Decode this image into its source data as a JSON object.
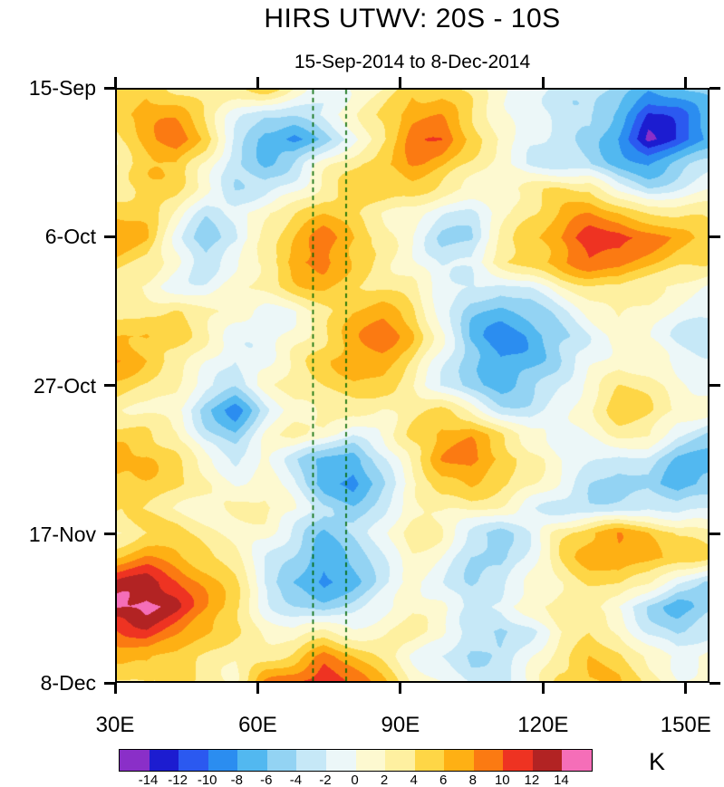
{
  "title": "HIRS UTWV: 20S - 10S",
  "subtitle": "15-Sep-2014 to 8-Dec-2014",
  "axes": {
    "x_range": [
      30,
      155
    ],
    "y_range_days": [
      0,
      84
    ],
    "x_ticks": [
      {
        "lon": 30,
        "label": "30E"
      },
      {
        "lon": 60,
        "label": "60E"
      },
      {
        "lon": 90,
        "label": "90E"
      },
      {
        "lon": 120,
        "label": "120E"
      },
      {
        "lon": 150,
        "label": "150E"
      }
    ],
    "y_ticks": [
      {
        "day": 0,
        "label": "15-Sep"
      },
      {
        "day": 21,
        "label": "6-Oct"
      },
      {
        "day": 42,
        "label": "27-Oct"
      },
      {
        "day": 63,
        "label": "17-Nov"
      },
      {
        "day": 84,
        "label": "8-Dec"
      }
    ]
  },
  "reference_lines": {
    "longitudes": [
      71.5,
      78.5
    ],
    "color": "#006600",
    "style": "dashed"
  },
  "colorbar": {
    "unit": "K",
    "tick_labels": [
      "-14",
      "-12",
      "-10",
      "-8",
      "-6",
      "-4",
      "-2",
      "0",
      "2",
      "4",
      "6",
      "8",
      "10",
      "12",
      "14"
    ],
    "colors": [
      "#8a2fc8",
      "#1c1cd0",
      "#2b59f0",
      "#2b8df0",
      "#52b8f0",
      "#93d3f3",
      "#c6e8f7",
      "#ecf7f8",
      "#fdf9d0",
      "#fef0a0",
      "#fed646",
      "#feb014",
      "#fb7a12",
      "#ee3322",
      "#b22323",
      "#f56eb8"
    ]
  },
  "chart_data": {
    "type": "heatmap",
    "title": "HIRS UTWV: 20S - 10S",
    "subtitle": "15-Sep-2014 to 8-Dec-2014",
    "xlabel": "",
    "ylabel": "",
    "units": "K",
    "levels": [
      -14,
      -12,
      -10,
      -8,
      -6,
      -4,
      -2,
      0,
      2,
      4,
      6,
      8,
      10,
      12,
      14
    ],
    "x_longitudes": [
      30,
      36.25,
      42.5,
      48.75,
      55,
      61.25,
      67.5,
      73.75,
      80,
      86.25,
      92.5,
      98.75,
      105,
      111.25,
      117.5,
      123.75,
      130,
      136.25,
      142.5,
      148.75,
      155
    ],
    "y_days_from_start": [
      0,
      3.5,
      7,
      10.5,
      14,
      17.5,
      21,
      24.5,
      28,
      31.5,
      35,
      38.5,
      42,
      45.5,
      49,
      52.5,
      56,
      59.5,
      63,
      66.5,
      70,
      73.5,
      77,
      80.5,
      84
    ],
    "values": [
      [
        4,
        5,
        3,
        2,
        3,
        4,
        1,
        -2,
        0,
        2,
        5,
        6,
        4,
        1,
        -1,
        -3,
        -2,
        -5,
        -8,
        -7,
        -5
      ],
      [
        5,
        7,
        6,
        3,
        -1,
        -4,
        -3,
        -1,
        1,
        4,
        8,
        8,
        5,
        2,
        -1,
        -3,
        -4,
        -8,
        -13,
        -11,
        -7
      ],
      [
        4,
        6,
        9,
        5,
        -2,
        -7,
        -9,
        -5,
        -1,
        4,
        9,
        10,
        6,
        2,
        -2,
        -4,
        -5,
        -9,
        -15,
        -12,
        -8
      ],
      [
        2,
        5,
        6,
        2,
        -4,
        -6,
        -4,
        1,
        4,
        7,
        9,
        7,
        4,
        0,
        -3,
        -4,
        -5,
        -7,
        -8,
        -6,
        -4
      ],
      [
        3,
        4,
        4,
        1,
        -3,
        -3,
        0,
        3,
        5,
        6,
        5,
        3,
        2,
        1,
        2,
        3,
        3,
        -2,
        -4,
        -2,
        0
      ],
      [
        6,
        5,
        2,
        -3,
        -1,
        3,
        4,
        6,
        5,
        3,
        1,
        -2,
        -3,
        0,
        3,
        5,
        7,
        6,
        4,
        3,
        3
      ],
      [
        7,
        6,
        0,
        -5,
        -3,
        3,
        6,
        9,
        7,
        4,
        0,
        -4,
        -5,
        1,
        5,
        8,
        11,
        12,
        10,
        7,
        5
      ],
      [
        5,
        4,
        1,
        -3,
        0,
        4,
        8,
        9,
        6,
        3,
        1,
        -3,
        -2,
        3,
        5,
        7,
        9,
        9,
        7,
        5,
        4
      ],
      [
        3,
        2,
        0,
        -1,
        1,
        3,
        5,
        6,
        5,
        4,
        2,
        -1,
        -3,
        -4,
        -2,
        2,
        4,
        5,
        3,
        1,
        0
      ],
      [
        2,
        4,
        5,
        3,
        1,
        -1,
        0,
        3,
        6,
        7,
        5,
        -1,
        -6,
        -7,
        -5,
        -2,
        1,
        3,
        2,
        0,
        -1
      ],
      [
        6,
        7,
        5,
        2,
        -1,
        -2,
        1,
        4,
        7,
        8,
        6,
        0,
        -7,
        -9,
        -7,
        -4,
        -1,
        1,
        0,
        -2,
        -3
      ],
      [
        8,
        7,
        4,
        0,
        -3,
        -1,
        2,
        5,
        8,
        7,
        4,
        -1,
        -6,
        -8,
        -6,
        -3,
        0,
        2,
        1,
        -1,
        -2
      ],
      [
        5,
        4,
        2,
        -2,
        -4,
        0,
        3,
        4,
        5,
        4,
        2,
        -2,
        -5,
        -6,
        -4,
        -1,
        2,
        4,
        3,
        1,
        0
      ],
      [
        3,
        2,
        0,
        -6,
        -9,
        -3,
        1,
        3,
        2,
        1,
        3,
        4,
        2,
        -2,
        -3,
        -1,
        2,
        5,
        4,
        2,
        1
      ],
      [
        5,
        4,
        2,
        -4,
        -6,
        -1,
        2,
        1,
        -2,
        0,
        4,
        7,
        8,
        5,
        1,
        -1,
        1,
        3,
        2,
        -2,
        -4
      ],
      [
        7,
        6,
        3,
        0,
        -2,
        0,
        -3,
        -6,
        -8,
        -3,
        3,
        8,
        10,
        7,
        3,
        0,
        -2,
        -4,
        -3,
        -6,
        -7
      ],
      [
        6,
        5,
        4,
        2,
        0,
        1,
        -2,
        -7,
        -9,
        -4,
        1,
        5,
        7,
        5,
        2,
        -1,
        -4,
        -6,
        -5,
        -8,
        -6
      ],
      [
        4,
        3,
        2,
        1,
        2,
        3,
        0,
        -4,
        -5,
        -1,
        2,
        3,
        3,
        1,
        -2,
        -4,
        -5,
        -3,
        -2,
        -4,
        -3
      ],
      [
        2,
        3,
        4,
        3,
        2,
        1,
        -2,
        -6,
        -4,
        0,
        3,
        2,
        -2,
        -5,
        -3,
        2,
        5,
        7,
        6,
        4,
        3
      ],
      [
        6,
        8,
        7,
        5,
        3,
        -1,
        -4,
        -8,
        -5,
        -1,
        2,
        0,
        -4,
        -6,
        -2,
        3,
        6,
        8,
        7,
        5,
        4
      ],
      [
        12,
        13,
        11,
        8,
        4,
        -2,
        -6,
        -9,
        -6,
        -2,
        1,
        -1,
        -5,
        -4,
        0,
        2,
        4,
        5,
        3,
        -2,
        -4
      ],
      [
        14,
        15,
        13,
        9,
        5,
        0,
        -3,
        -5,
        -3,
        0,
        2,
        0,
        -3,
        -2,
        1,
        3,
        2,
        0,
        -4,
        -7,
        -5
      ],
      [
        10,
        12,
        10,
        7,
        4,
        2,
        0,
        2,
        1,
        2,
        3,
        1,
        -4,
        -6,
        -3,
        2,
        4,
        3,
        -2,
        -5,
        -3
      ],
      [
        6,
        7,
        6,
        4,
        2,
        3,
        5,
        9,
        6,
        3,
        0,
        -2,
        -5,
        -4,
        0,
        4,
        6,
        5,
        2,
        0,
        1
      ],
      [
        4,
        5,
        4,
        3,
        2,
        8,
        10,
        12,
        9,
        5,
        1,
        -1,
        -3,
        -2,
        1,
        5,
        7,
        6,
        3,
        1,
        2
      ]
    ]
  }
}
